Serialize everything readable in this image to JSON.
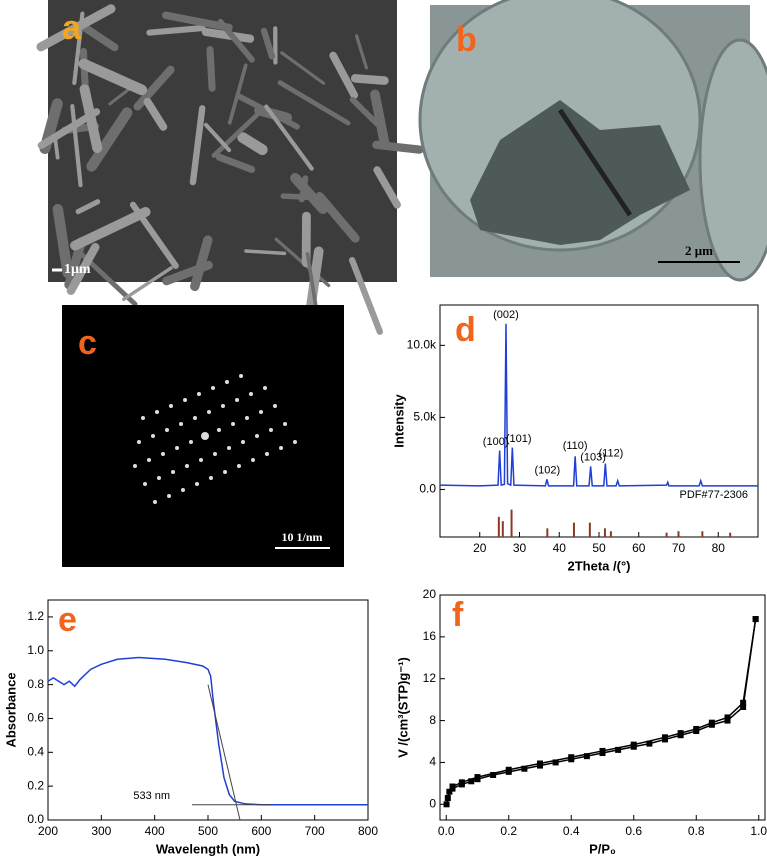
{
  "panels": {
    "a": {
      "letter": "a",
      "scale_bar": "1μm"
    },
    "b": {
      "letter": "b",
      "scale_bar": "2 μm"
    },
    "c": {
      "letter": "c",
      "scale_bar": "10 1/nm"
    }
  },
  "chart_data": [
    {
      "type": "line",
      "panel_letter": "d",
      "x_label": "2Theta /(°)",
      "y_label": "Intensity",
      "color": "#1f3fd6",
      "x": [
        10,
        20,
        24.6,
        25.0,
        25.4,
        26.2,
        26.6,
        27.0,
        27.8,
        28.2,
        28.6,
        36.5,
        36.9,
        37.3,
        43.6,
        44.0,
        44.4,
        47.5,
        47.9,
        48.3,
        51.2,
        51.6,
        52.0,
        54.3,
        54.7,
        55.1,
        67,
        67.3,
        67.6,
        75.2,
        75.6,
        76,
        90
      ],
      "values": [
        300,
        250,
        300,
        2700,
        300,
        350,
        11500,
        400,
        300,
        2900,
        300,
        250,
        700,
        250,
        250,
        2300,
        250,
        250,
        1600,
        250,
        250,
        1800,
        250,
        250,
        600,
        250,
        300,
        500,
        250,
        250,
        600,
        250,
        250
      ],
      "xlim": [
        10,
        90
      ],
      "xticks": [
        20,
        30,
        40,
        50,
        60,
        70,
        80
      ],
      "ylim": [
        -3300,
        12800
      ],
      "yticks": [
        {
          "value": 0,
          "label": "0.0"
        },
        {
          "value": 5000,
          "label": "5.0k"
        },
        {
          "value": 10000,
          "label": "10.0k"
        }
      ],
      "annotations": [
        {
          "text": "(002)",
          "x": 26.6,
          "y": 12100
        },
        {
          "text": "(100)",
          "x": 24.0,
          "y": 3300
        },
        {
          "text": "(101)",
          "x": 29.8,
          "y": 3500
        },
        {
          "text": "(102)",
          "x": 37.0,
          "y": 1300
        },
        {
          "text": "(110)",
          "x": 44.0,
          "y": 3000
        },
        {
          "text": "(103)",
          "x": 48.5,
          "y": 2200
        },
        {
          "text": "(112)",
          "x": 53.0,
          "y": 2500
        }
      ],
      "reference": {
        "label": "PDF#77-2306",
        "color": "#8b3a2a",
        "x": [
          24.8,
          25.8,
          28.0,
          37.0,
          43.7,
          47.7,
          51.5,
          53.0,
          67.0,
          70.0,
          76.0,
          83.0
        ],
        "values": [
          -1900,
          -2200,
          -1400,
          -2700,
          -2300,
          -2300,
          -2700,
          -2900,
          -3000,
          -2900,
          -2900,
          -3000
        ]
      }
    },
    {
      "type": "line",
      "panel_letter": "e",
      "x_label": "Wavelength (nm)",
      "y_label": "Absorbance",
      "color": "#1f3fd6",
      "x": [
        200,
        210,
        220,
        230,
        240,
        250,
        260,
        280,
        300,
        330,
        370,
        420,
        460,
        490,
        500,
        505,
        510,
        520,
        530,
        540,
        550,
        570,
        600,
        700,
        800
      ],
      "values": [
        0.82,
        0.84,
        0.82,
        0.8,
        0.82,
        0.79,
        0.83,
        0.89,
        0.92,
        0.95,
        0.96,
        0.95,
        0.93,
        0.91,
        0.89,
        0.85,
        0.7,
        0.45,
        0.25,
        0.15,
        0.11,
        0.095,
        0.09,
        0.09,
        0.09
      ],
      "xlim": [
        200,
        800
      ],
      "xticks": [
        200,
        300,
        400,
        500,
        600,
        700,
        800
      ],
      "ylim": [
        0,
        1.3
      ],
      "yticks": [
        {
          "value": 0,
          "label": "0.0"
        },
        0.2,
        0.4,
        0.6,
        0.8,
        {
          "value": 1,
          "label": "1.0"
        },
        1.2
      ],
      "annotations": [
        {
          "text": "533 nm",
          "x": 360,
          "y": 0.14
        }
      ]
    },
    {
      "type": "line-marker",
      "panel_letter": "f",
      "x_label": "P/P₀",
      "y_label": "V /(cm³(STP)g⁻¹)",
      "color": "#000000",
      "series": [
        {
          "x": [
            0.001,
            0.005,
            0.01,
            0.02,
            0.05,
            0.08,
            0.1,
            0.15,
            0.2,
            0.25,
            0.3,
            0.35,
            0.4,
            0.45,
            0.5,
            0.55,
            0.6,
            0.65,
            0.7,
            0.75,
            0.8,
            0.85,
            0.9,
            0.95,
            0.99
          ],
          "values": [
            0,
            0.6,
            1.2,
            1.5,
            1.9,
            2.2,
            2.4,
            2.8,
            3.1,
            3.4,
            3.7,
            4.0,
            4.3,
            4.6,
            4.9,
            5.2,
            5.5,
            5.8,
            6.2,
            6.6,
            7.0,
            7.6,
            8.0,
            9.3,
            17.7
          ]
        },
        {
          "x": [
            0.99,
            0.95,
            0.9,
            0.85,
            0.8,
            0.75,
            0.7,
            0.6,
            0.5,
            0.4,
            0.3,
            0.2,
            0.1,
            0.05,
            0.02
          ],
          "values": [
            17.7,
            9.7,
            8.3,
            7.8,
            7.2,
            6.8,
            6.4,
            5.7,
            5.1,
            4.5,
            3.9,
            3.3,
            2.6,
            2.1,
            1.7
          ]
        }
      ],
      "xlim": [
        -0.02,
        1.02
      ],
      "xticks": [
        {
          "value": 0,
          "label": "0.0"
        },
        0.2,
        0.4,
        0.6,
        0.8,
        {
          "value": 1,
          "label": "1.0"
        }
      ],
      "ylim": [
        -1.5,
        20
      ],
      "yticks": [
        0,
        4,
        8,
        12,
        16,
        20
      ]
    }
  ]
}
